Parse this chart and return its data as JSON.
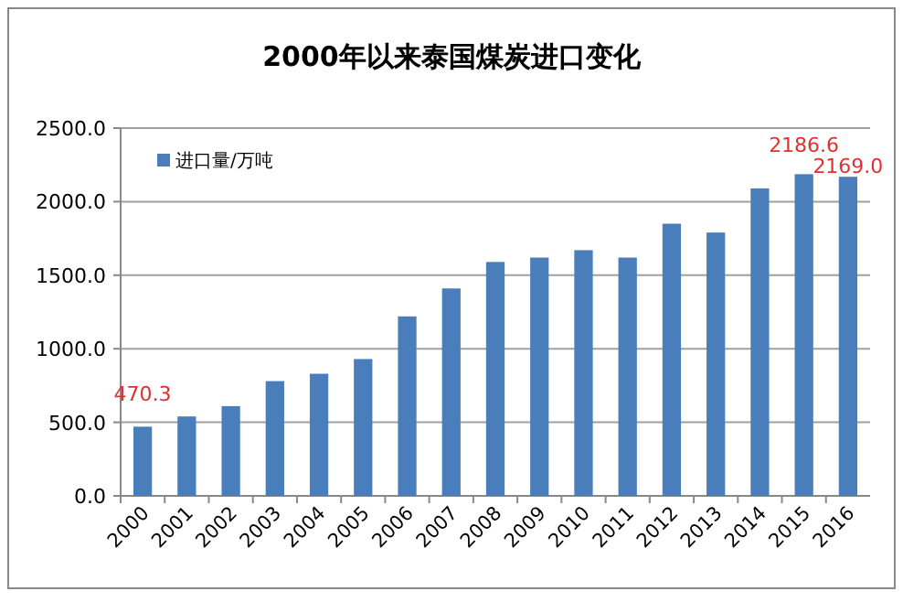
{
  "chart_data": {
    "type": "bar",
    "title": "2000年以来泰国煤炭进口变化",
    "categories": [
      "2000",
      "2001",
      "2002",
      "2003",
      "2004",
      "2005",
      "2006",
      "2007",
      "2008",
      "2009",
      "2010",
      "2011",
      "2012",
      "2013",
      "2014",
      "2015",
      "2016"
    ],
    "series": [
      {
        "name": "进口量/万吨",
        "color": "#4a7ebb",
        "values": [
          470.3,
          540,
          610,
          780,
          830,
          930,
          1220,
          1410,
          1590,
          1620,
          1670,
          1620,
          1850,
          1790,
          2090,
          2186.6,
          2169.0
        ],
        "value_labels": [
          "470.3",
          null,
          null,
          null,
          null,
          null,
          null,
          null,
          null,
          null,
          null,
          null,
          null,
          null,
          null,
          "2186.6",
          "2169.0"
        ]
      }
    ],
    "ylim": [
      0,
      2500
    ],
    "yticks": [
      {
        "value": 0,
        "label": "0.0"
      },
      {
        "value": 500,
        "label": "500.0"
      },
      {
        "value": 1000,
        "label": "1000.0"
      },
      {
        "value": 1500,
        "label": "1500.0"
      },
      {
        "value": 2000,
        "label": "2000.0"
      },
      {
        "value": 2500,
        "label": "2500.0"
      }
    ],
    "grid": "y",
    "legend": "top left"
  }
}
